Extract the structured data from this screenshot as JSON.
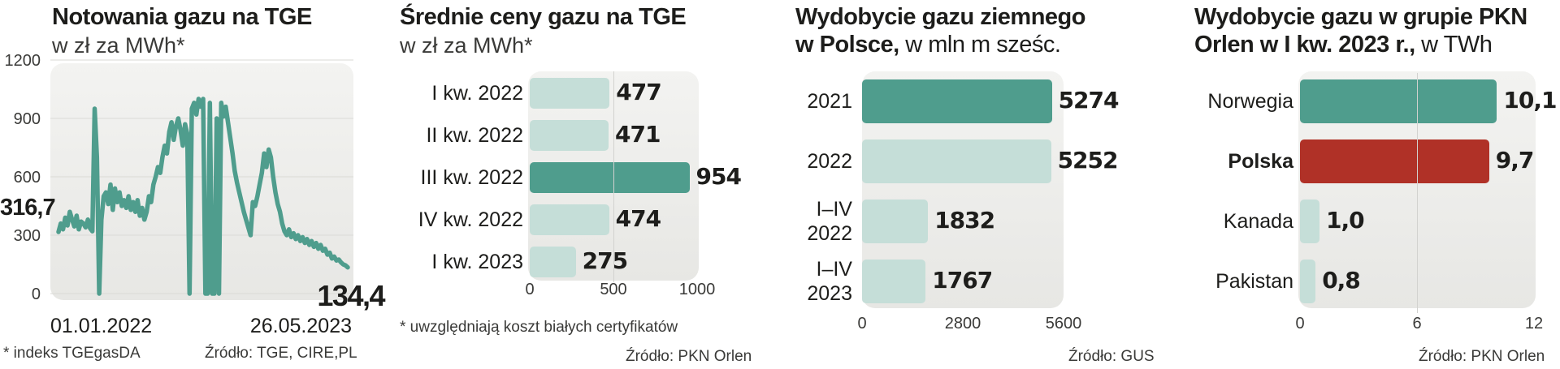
{
  "charts": {
    "c1": {
      "title": "Notowania gazu na TGE",
      "subtitle": "w zł za MWh*",
      "footnote": "* indeks TGEgasDA",
      "source": "Źródło: TGE, CIRE,PL"
    },
    "c2": {
      "title": "Średnie ceny gazu na TGE",
      "subtitle": "w zł za MWh*",
      "footnote": "* uwzględniają koszt białych certyfikatów",
      "source": "Źródło: PKN Orlen"
    },
    "c3": {
      "title_bold_1": "Wydobycie gazu ziemnego",
      "title_bold_2": "w Polsce,",
      "title_light": " w mln m sześc.",
      "source": "Źródło: GUS"
    },
    "c4": {
      "title_bold_1": "Wydobycie gazu w grupie PKN",
      "title_bold_2": "Orlen w I kw. 2023 r.,",
      "title_light": " w TWh",
      "source": "Źródło: PKN Orlen"
    }
  },
  "chart_data": [
    {
      "type": "line",
      "title": "Notowania gazu na TGE",
      "subtitle": "w zł za MWh*",
      "ylim": [
        0,
        1200
      ],
      "yticks": [
        "1200",
        "900",
        "600",
        "300",
        "0"
      ],
      "xticks": [
        "01.01.2022",
        "26.05.2023"
      ],
      "start_label": "316,7",
      "end_label": "134,4",
      "grid": true,
      "color": "#4f9d8d",
      "series": [
        {
          "values": [
            316.7,
            360,
            330,
            390,
            350,
            420,
            380,
            345,
            400,
            330,
            370,
            360,
            340,
            380,
            335,
            320,
            950,
            700,
            0,
            380,
            500,
            520,
            460,
            560,
            430,
            540,
            470,
            520,
            450,
            480,
            440,
            500,
            430,
            470,
            420,
            480,
            400,
            440,
            380,
            420,
            500,
            470,
            560,
            600,
            650,
            620,
            700,
            760,
            720,
            830,
            880,
            790,
            860,
            900,
            840,
            760,
            870,
            820,
            0,
            950,
            980,
            920,
            1000,
            960,
            1000,
            0,
            0,
            980,
            0,
            0,
            900,
            0,
            980,
            910,
            960,
            880,
            800,
            720,
            630,
            570,
            520,
            470,
            420,
            380,
            340,
            300,
            470,
            450,
            500,
            560,
            620,
            720,
            650,
            740,
            700,
            600,
            520,
            460,
            420,
            360,
            320,
            300,
            330,
            290,
            310,
            280,
            300,
            270,
            290,
            260,
            280,
            250,
            270,
            240,
            260,
            230,
            250,
            220,
            230,
            200,
            210,
            180,
            190,
            170,
            175,
            160,
            150,
            145,
            134.4
          ]
        }
      ]
    },
    {
      "type": "bar",
      "orientation": "horizontal",
      "title": "Średnie ceny gazu na TGE",
      "subtitle": "w zł za MWh*",
      "categories": [
        "I kw. 2022",
        "II kw. 2022",
        "III kw. 2022",
        "IV kw. 2022",
        "I kw. 2023"
      ],
      "values": [
        477,
        471,
        954,
        474,
        275
      ],
      "value_labels": [
        "477",
        "471",
        "954",
        "474",
        "275"
      ],
      "highlight_index": 2,
      "xlim": [
        0,
        1000
      ],
      "xticks": [
        "0",
        "500",
        "1000"
      ],
      "colors": {
        "normal": "#c5ded8",
        "highlight": "#4f9d8d"
      }
    },
    {
      "type": "bar",
      "orientation": "horizontal",
      "title": "Wydobycie gazu ziemnego w Polsce, w mln m sześc.",
      "categories": [
        [
          "2021"
        ],
        [
          "2022"
        ],
        [
          "I–IV",
          "2022"
        ],
        [
          "I–IV",
          "2023"
        ]
      ],
      "values": [
        5274,
        5252,
        1832,
        1767
      ],
      "value_labels": [
        "5274",
        "5252",
        "1832",
        "1767"
      ],
      "highlight_index": 0,
      "xlim": [
        0,
        5600
      ],
      "xticks": [
        "0",
        "2800",
        "5600"
      ],
      "colors": {
        "normal": "#c5ded8",
        "highlight": "#4f9d8d"
      }
    },
    {
      "type": "bar",
      "orientation": "horizontal",
      "title": "Wydobycie gazu w grupie PKN Orlen w I kw. 2023 r., w TWh",
      "categories": [
        "Norwegia",
        "Polska",
        "Kanada",
        "Pakistan"
      ],
      "values": [
        10.1,
        9.7,
        1.0,
        0.8
      ],
      "value_labels": [
        "10,1",
        "9,7",
        "1,0",
        "0,8"
      ],
      "highlight_index": 0,
      "accent_index": 1,
      "xlim": [
        0,
        12
      ],
      "xticks": [
        "0",
        "6",
        "12"
      ],
      "colors": {
        "normal": "#c5ded8",
        "highlight": "#4f9d8d",
        "accent": "#b03127"
      }
    }
  ]
}
